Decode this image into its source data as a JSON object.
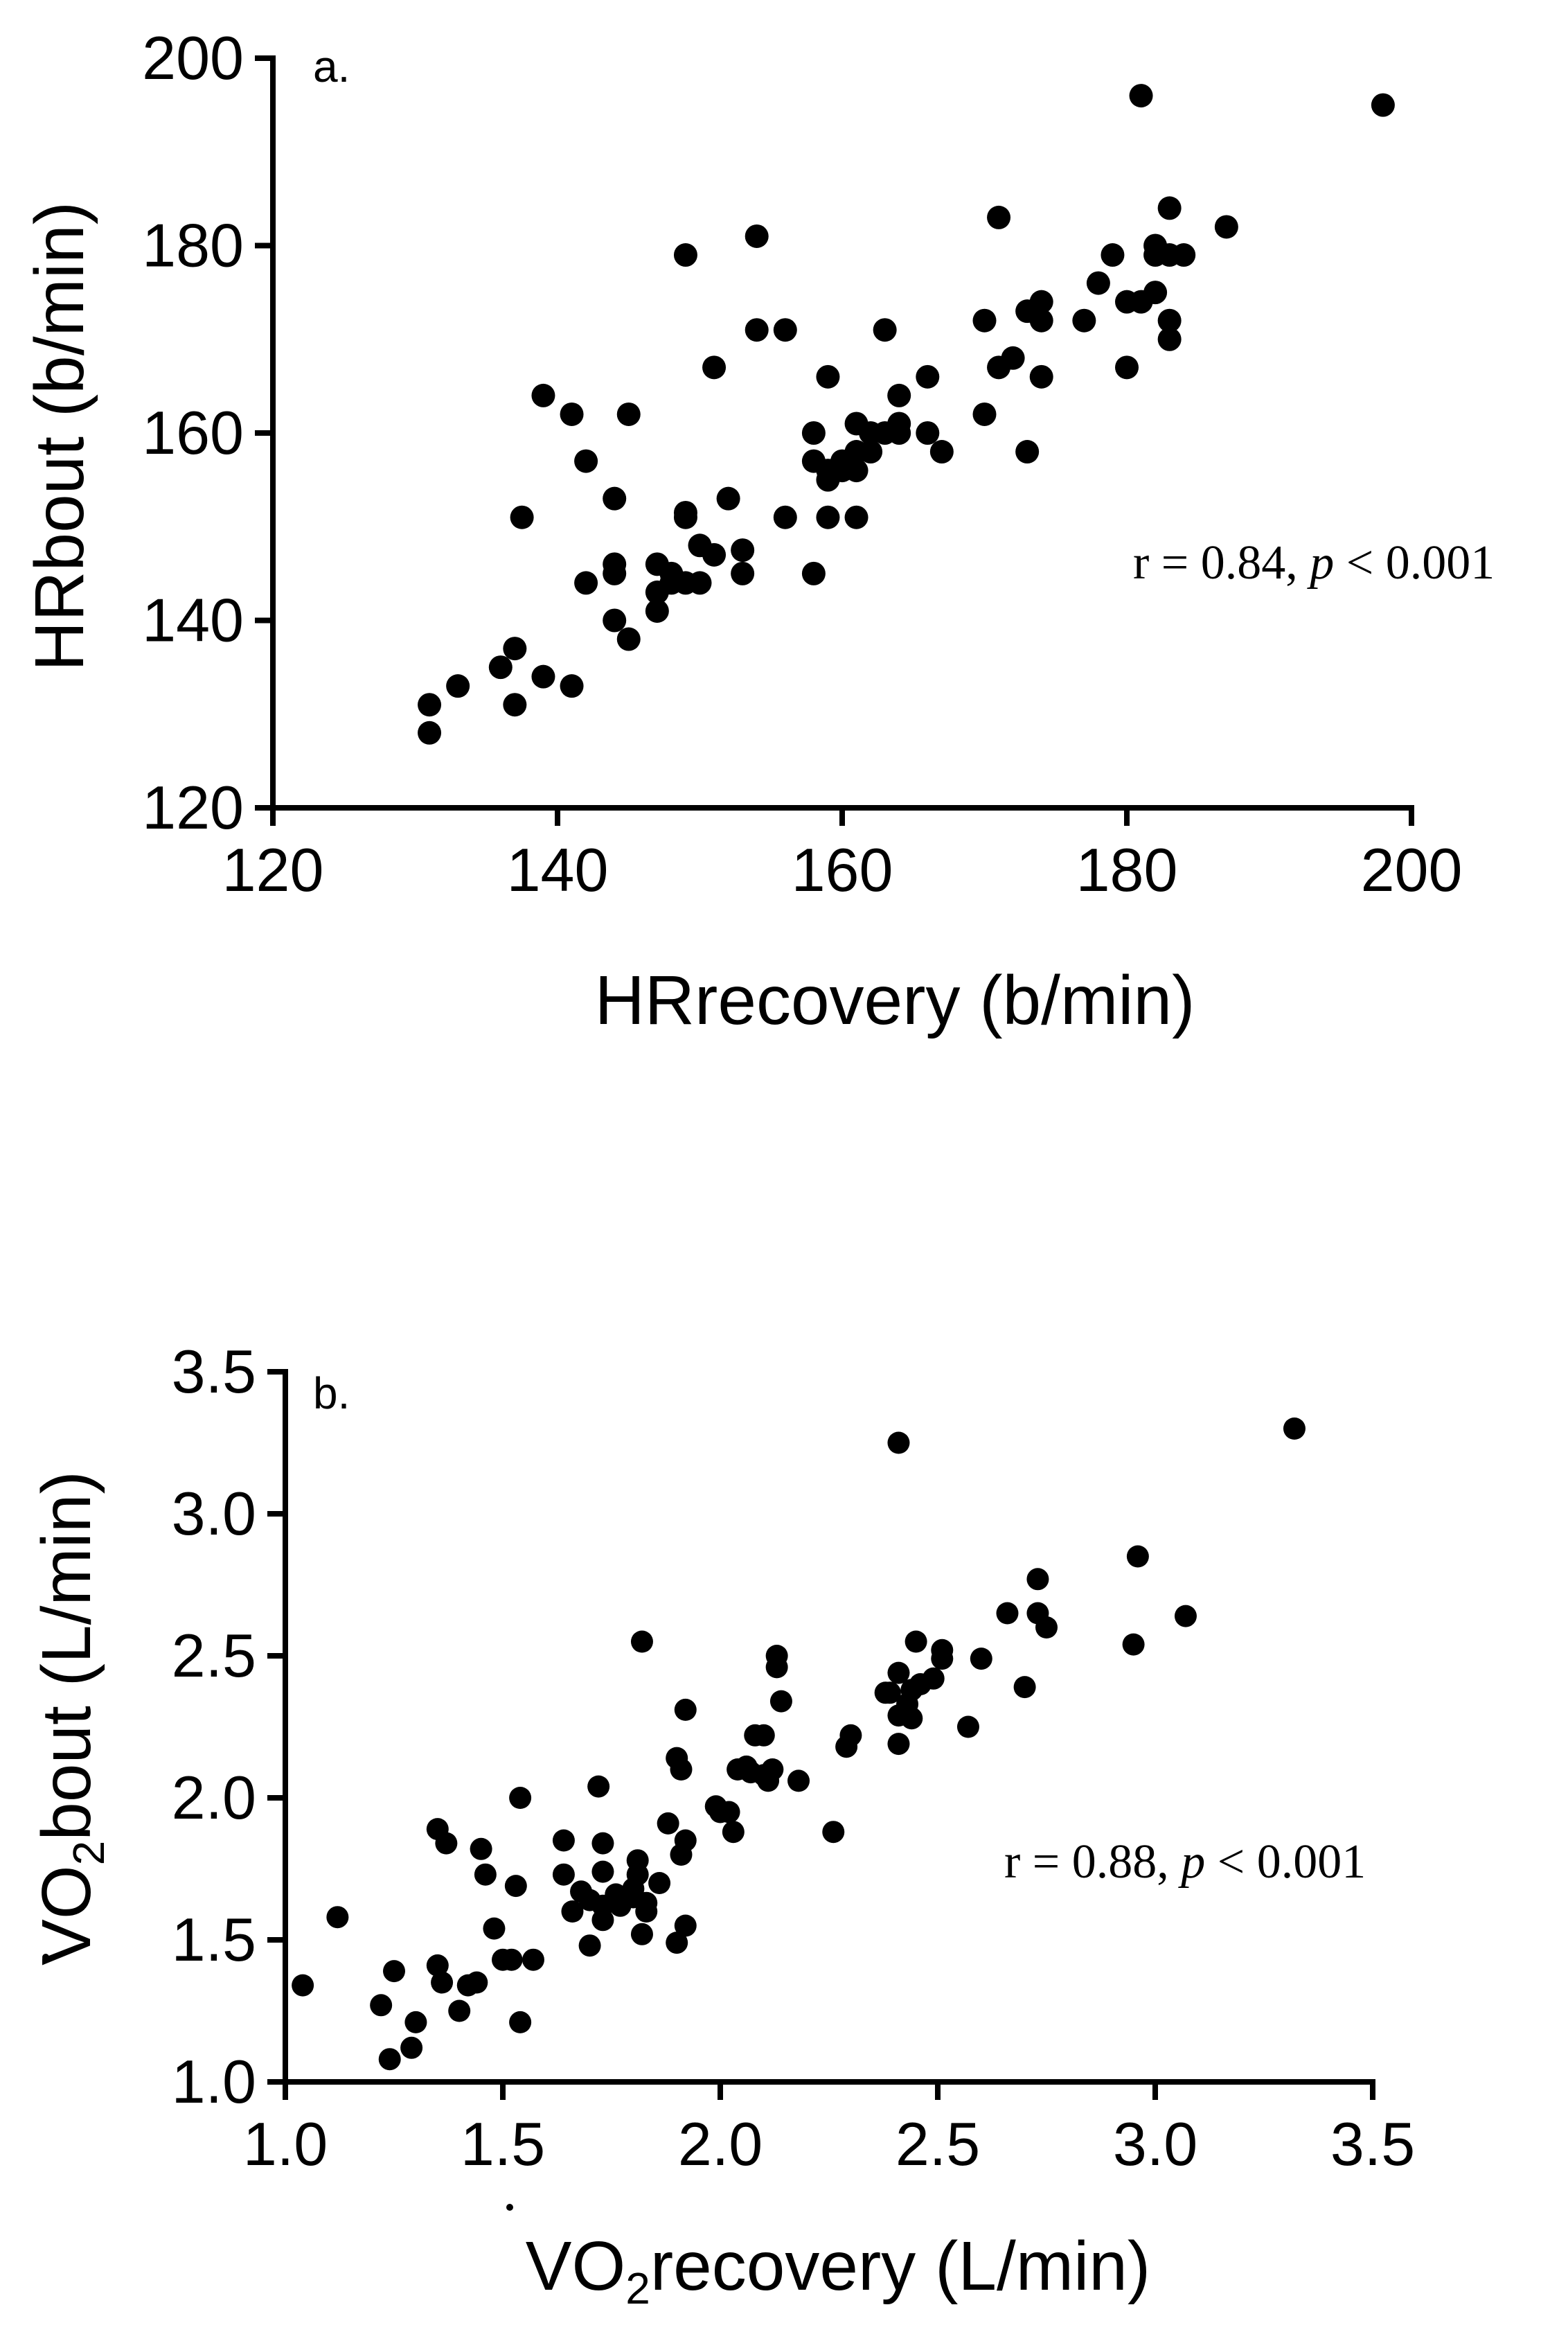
{
  "chart_data": [
    {
      "type": "scatter",
      "panel_label": "a.",
      "xlabel": "HRrecovery (b/min)",
      "ylabel": "HRbout (b/min)",
      "xlim": [
        120,
        200
      ],
      "ylim": [
        120,
        200
      ],
      "xticks": [
        120,
        140,
        160,
        180,
        200
      ],
      "yticks": [
        120,
        140,
        160,
        180,
        200
      ],
      "xtick_labels": [
        "120",
        "140",
        "160",
        "180",
        "200"
      ],
      "ytick_labels": [
        "120",
        "140",
        "160",
        "180",
        "200"
      ],
      "annotation": {
        "prefix": "r = 0.84, ",
        "p": "p",
        "suffix": " < 0.001"
      },
      "series": [
        {
          "name": "HR",
          "points": [
            [
              131,
              131
            ],
            [
              131,
              128
            ],
            [
              133,
              133
            ],
            [
              136,
              135
            ],
            [
              137,
              137
            ],
            [
              137,
              131
            ],
            [
              137.5,
              151
            ],
            [
              139,
              134
            ],
            [
              139,
              164
            ],
            [
              141,
              162
            ],
            [
              141,
              133
            ],
            [
              142,
              157
            ],
            [
              142,
              144
            ],
            [
              144,
              153
            ],
            [
              144,
              146
            ],
            [
              144,
              145
            ],
            [
              144,
              140
            ],
            [
              145,
              162
            ],
            [
              145,
              138
            ],
            [
              147,
              146
            ],
            [
              147,
              141
            ],
            [
              147,
              143
            ],
            [
              148,
              145
            ],
            [
              148,
              144
            ],
            [
              149,
              144
            ],
            [
              149,
              179
            ],
            [
              149,
              151.5
            ],
            [
              149,
              151
            ],
            [
              150,
              148
            ],
            [
              150,
              144
            ],
            [
              151,
              167
            ],
            [
              151,
              147
            ],
            [
              152,
              153
            ],
            [
              153,
              147.5
            ],
            [
              153,
              145
            ],
            [
              154,
              181
            ],
            [
              154,
              171
            ],
            [
              156,
              171
            ],
            [
              156,
              151
            ],
            [
              158,
              160
            ],
            [
              158,
              157
            ],
            [
              158,
              145
            ],
            [
              159,
              166
            ],
            [
              159,
              156
            ],
            [
              159,
              155
            ],
            [
              159,
              151
            ],
            [
              160,
              157
            ],
            [
              160,
              156
            ],
            [
              161,
              161
            ],
            [
              161,
              158
            ],
            [
              161,
              156
            ],
            [
              161,
              151
            ],
            [
              162,
              158
            ],
            [
              162,
              160
            ],
            [
              163,
              171
            ],
            [
              163,
              160
            ],
            [
              164,
              164
            ],
            [
              164,
              161
            ],
            [
              164,
              160
            ],
            [
              166,
              166
            ],
            [
              166,
              160
            ],
            [
              167,
              158
            ],
            [
              170,
              162
            ],
            [
              170,
              172
            ],
            [
              171,
              183
            ],
            [
              171,
              167
            ],
            [
              172,
              168
            ],
            [
              173,
              173
            ],
            [
              173,
              158
            ],
            [
              174,
              174
            ],
            [
              174,
              172
            ],
            [
              174,
              166
            ],
            [
              177,
              172
            ],
            [
              178,
              176
            ],
            [
              179,
              179
            ],
            [
              180,
              174
            ],
            [
              180,
              167
            ],
            [
              181,
              196
            ],
            [
              181,
              174
            ],
            [
              182,
              180
            ],
            [
              182,
              179
            ],
            [
              182,
              175
            ],
            [
              183,
              184
            ],
            [
              183,
              179
            ],
            [
              183,
              172
            ],
            [
              183,
              170
            ],
            [
              184,
              179
            ],
            [
              187,
              182
            ],
            [
              198,
              195
            ]
          ]
        }
      ]
    },
    {
      "type": "scatter",
      "panel_label": "b.",
      "xlabel_main": "VO",
      "xlabel_sub": "2",
      "xlabel_rest": "recovery (L/min)",
      "ylabel_main": "VO",
      "ylabel_sub": "2",
      "ylabel_rest": "bout (L/min)",
      "xlim": [
        1.0,
        3.5
      ],
      "ylim": [
        1.0,
        3.5
      ],
      "xticks": [
        1.0,
        1.5,
        2.0,
        2.5,
        3.0,
        3.5
      ],
      "yticks": [
        1.0,
        1.5,
        2.0,
        2.5,
        3.0,
        3.5
      ],
      "xtick_labels": [
        "1.0",
        "1.5",
        "2.0",
        "2.5",
        "3.0",
        "3.5"
      ],
      "ytick_labels": [
        "1.0",
        "1.5",
        "2.0",
        "2.5",
        "3.0",
        "3.5"
      ],
      "annotation": {
        "prefix": "r = 0.88, ",
        "p": "p",
        "suffix": " < 0.001"
      },
      "series": [
        {
          "name": "VO2",
          "points": [
            [
              1.04,
              1.34
            ],
            [
              1.12,
              1.58
            ],
            [
              1.22,
              1.27
            ],
            [
              1.24,
              1.08
            ],
            [
              1.25,
              1.39
            ],
            [
              1.29,
              1.12
            ],
            [
              1.3,
              1.21
            ],
            [
              1.35,
              1.89
            ],
            [
              1.35,
              1.41
            ],
            [
              1.36,
              1.35
            ],
            [
              1.37,
              1.84
            ],
            [
              1.4,
              1.25
            ],
            [
              1.42,
              1.34
            ],
            [
              1.44,
              1.35
            ],
            [
              1.45,
              1.82
            ],
            [
              1.46,
              1.73
            ],
            [
              1.48,
              1.54
            ],
            [
              1.5,
              1.43
            ],
            [
              1.52,
              1.43
            ],
            [
              1.53,
              1.69
            ],
            [
              1.54,
              2.0
            ],
            [
              1.54,
              1.21
            ],
            [
              1.57,
              1.43
            ],
            [
              1.64,
              1.85
            ],
            [
              1.64,
              1.73
            ],
            [
              1.66,
              1.6
            ],
            [
              1.68,
              1.67
            ],
            [
              1.7,
              1.48
            ],
            [
              1.7,
              1.64
            ],
            [
              1.72,
              2.04
            ],
            [
              1.73,
              1.84
            ],
            [
              1.73,
              1.62
            ],
            [
              1.73,
              1.74
            ],
            [
              1.73,
              1.57
            ],
            [
              1.76,
              1.66
            ],
            [
              1.77,
              1.62
            ],
            [
              1.8,
              1.68
            ],
            [
              1.8,
              1.65
            ],
            [
              1.81,
              1.78
            ],
            [
              1.81,
              1.73
            ],
            [
              1.82,
              2.55
            ],
            [
              1.82,
              1.52
            ],
            [
              1.83,
              1.63
            ],
            [
              1.83,
              1.6
            ],
            [
              1.86,
              1.7
            ],
            [
              1.88,
              1.91
            ],
            [
              1.9,
              2.14
            ],
            [
              1.9,
              1.49
            ],
            [
              1.91,
              2.1
            ],
            [
              1.91,
              1.8
            ],
            [
              1.92,
              2.31
            ],
            [
              1.92,
              1.85
            ],
            [
              1.92,
              1.55
            ],
            [
              1.99,
              1.97
            ],
            [
              2.0,
              1.95
            ],
            [
              2.02,
              1.95
            ],
            [
              2.03,
              1.88
            ],
            [
              2.04,
              2.1
            ],
            [
              2.06,
              2.11
            ],
            [
              2.07,
              2.09
            ],
            [
              2.08,
              2.22
            ],
            [
              2.1,
              2.22
            ],
            [
              2.1,
              2.08
            ],
            [
              2.11,
              2.06
            ],
            [
              2.12,
              2.1
            ],
            [
              2.13,
              2.5
            ],
            [
              2.13,
              2.46
            ],
            [
              2.14,
              2.34
            ],
            [
              2.18,
              2.06
            ],
            [
              2.26,
              1.88
            ],
            [
              2.29,
              2.18
            ],
            [
              2.3,
              2.22
            ],
            [
              2.38,
              2.37
            ],
            [
              2.39,
              2.37
            ],
            [
              2.41,
              3.25
            ],
            [
              2.41,
              2.44
            ],
            [
              2.41,
              2.29
            ],
            [
              2.41,
              2.19
            ],
            [
              2.43,
              2.33
            ],
            [
              2.44,
              2.38
            ],
            [
              2.44,
              2.28
            ],
            [
              2.45,
              2.55
            ],
            [
              2.46,
              2.4
            ],
            [
              2.49,
              2.42
            ],
            [
              2.51,
              2.52
            ],
            [
              2.51,
              2.49
            ],
            [
              2.57,
              2.25
            ],
            [
              2.6,
              2.49
            ],
            [
              2.66,
              2.65
            ],
            [
              2.7,
              2.39
            ],
            [
              2.73,
              2.77
            ],
            [
              2.73,
              2.65
            ],
            [
              2.75,
              2.6
            ],
            [
              2.95,
              2.54
            ],
            [
              2.96,
              2.85
            ],
            [
              3.07,
              2.64
            ],
            [
              3.32,
              3.3
            ]
          ]
        }
      ]
    }
  ]
}
